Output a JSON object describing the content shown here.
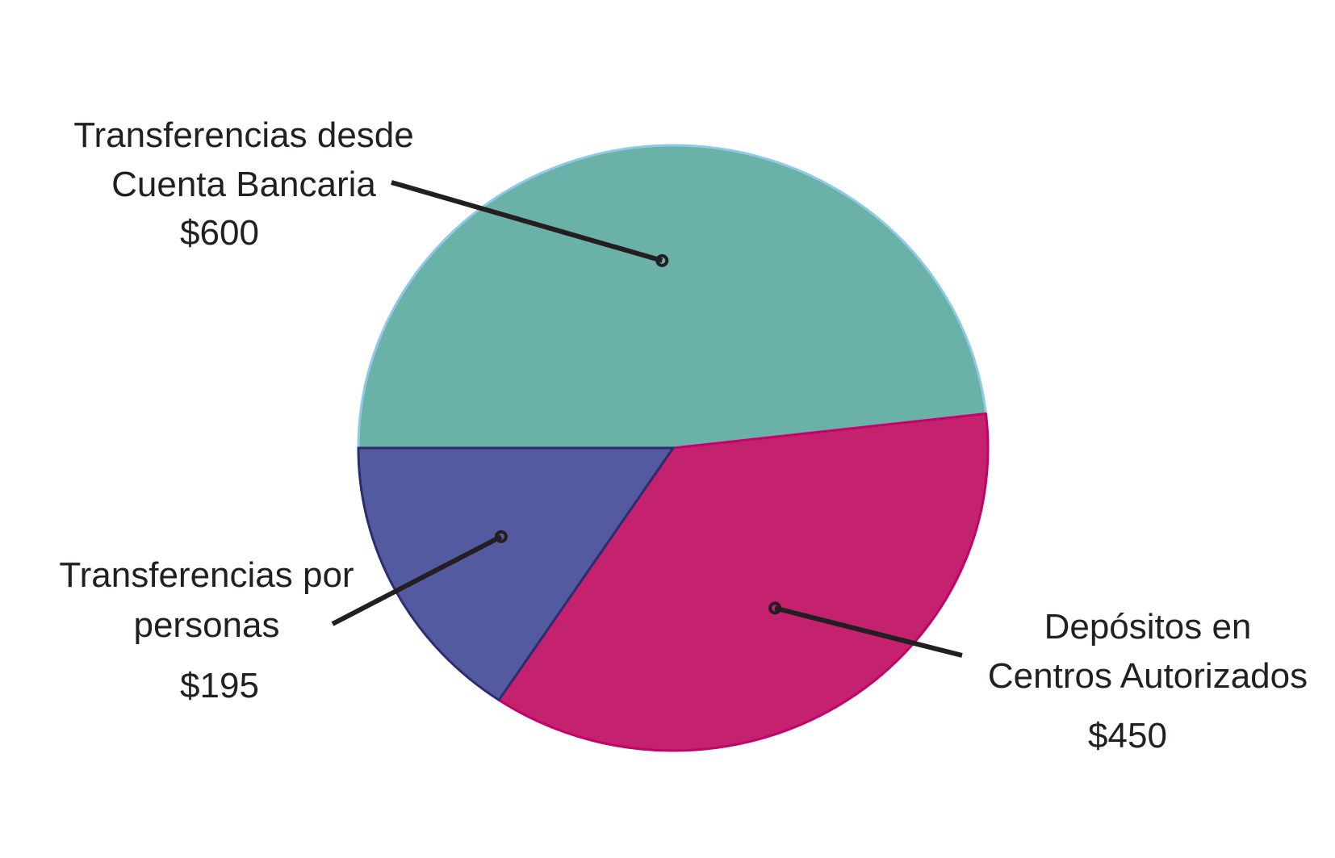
{
  "chart_data": {
    "type": "pie",
    "title": "",
    "currency": "$",
    "slices": [
      {
        "label_lines": [
          "Transferencias desde",
          "Cuenta Bancaria"
        ],
        "value": 600,
        "value_label": "$600",
        "color": "#6ab1a8",
        "edge_color": "#8fc8e8"
      },
      {
        "label_lines": [
          "Depósitos en",
          "Centros Autorizados"
        ],
        "value": 450,
        "value_label": "$450",
        "color": "#c4216f",
        "edge_color": "#c4006a"
      },
      {
        "label_lines": [
          "Transferencias por",
          "personas"
        ],
        "value": 195,
        "value_label": "$195",
        "color": "#545aa0",
        "edge_color": "#2b2e6e"
      }
    ]
  }
}
